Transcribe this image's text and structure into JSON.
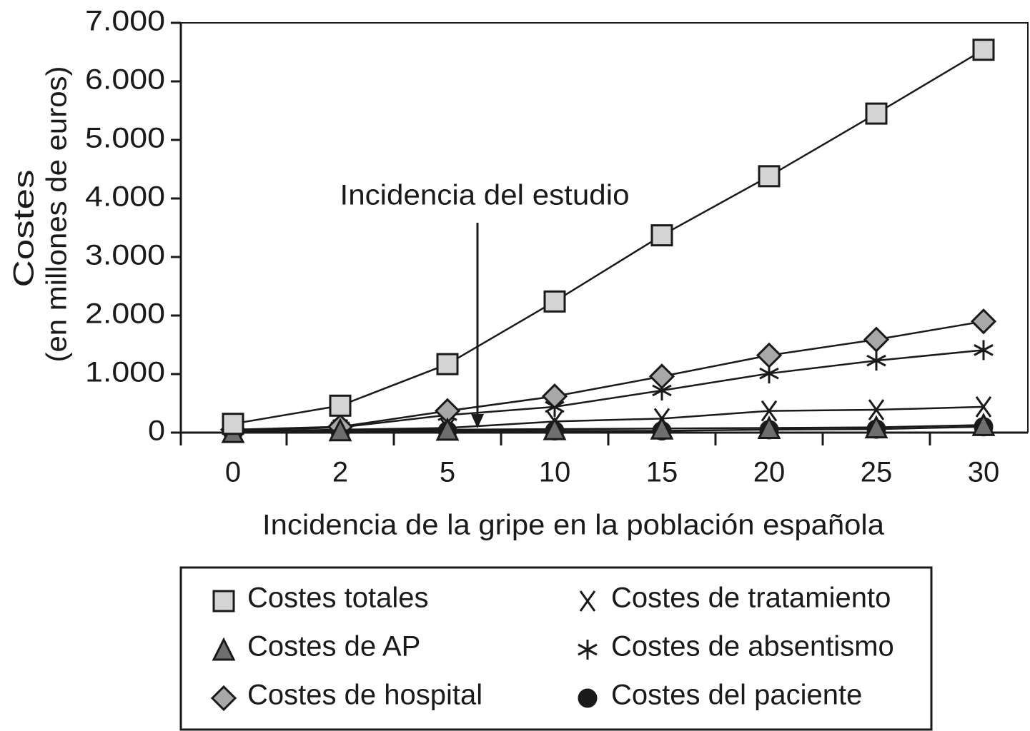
{
  "chart_data": {
    "type": "line",
    "ylabel": [
      "Costes",
      "(en millones de euros)"
    ],
    "xlabel": "Incidencia de la gripe en la población española",
    "annotation": "Incidencia del estudio",
    "categories": [
      "0",
      "2",
      "5",
      "10",
      "15",
      "20",
      "25",
      "30"
    ],
    "ylim": [
      0,
      7000
    ],
    "yticks": [
      0,
      {
        "value": 1000,
        "label": "1.000"
      },
      {
        "value": 2000,
        "label": "2.000"
      },
      {
        "value": 3000,
        "label": "3.000"
      },
      {
        "value": 4000,
        "label": "4.000"
      },
      {
        "value": 5000,
        "label": "5.000"
      },
      {
        "value": 6000,
        "label": "6.000"
      },
      {
        "value": 7000,
        "label": "7.000"
      }
    ],
    "series": [
      {
        "name": "Costes totales",
        "color": "#d4d4d4",
        "marker": "square",
        "values": [
          150,
          460,
          1170,
          2240,
          3370,
          4380,
          5450,
          6540
        ]
      },
      {
        "name": "Costes de AP",
        "color": "#6e6e6e",
        "marker": "triangle",
        "values": [
          10,
          40,
          50,
          60,
          70,
          80,
          90,
          130
        ]
      },
      {
        "name": "Costes de hospital",
        "color": "#a8a8a8",
        "marker": "diamond",
        "values": [
          50,
          100,
          370,
          620,
          960,
          1320,
          1590,
          1900
        ]
      },
      {
        "name": "Costes de tratamiento",
        "color": "#1a1a1a",
        "marker": "x",
        "values": [
          20,
          50,
          80,
          190,
          240,
          370,
          390,
          440
        ]
      },
      {
        "name": "Costes de absentismo",
        "color": "#1a1a1a",
        "marker": "star",
        "values": [
          30,
          90,
          300,
          440,
          720,
          1010,
          1230,
          1410
        ]
      },
      {
        "name": "Costes del paciente",
        "color": "#1a1a1a",
        "marker": "circle",
        "values": [
          5,
          20,
          30,
          30,
          30,
          50,
          60,
          100
        ]
      }
    ]
  }
}
